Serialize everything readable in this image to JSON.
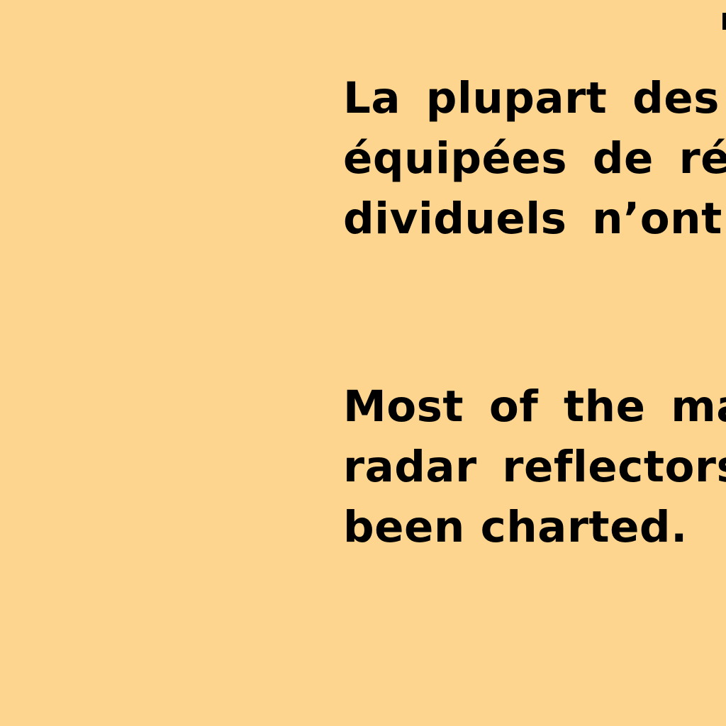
{
  "french_note": {
    "lines": [
      "La plupart des",
      "équipées de réfl",
      "dividuels n’ont p"
    ]
  },
  "english_note": {
    "lines": [
      "Most of the ma",
      "radar reflectors",
      "been charted."
    ]
  },
  "colors": {
    "background": "#FED58E",
    "text": "#000000"
  }
}
